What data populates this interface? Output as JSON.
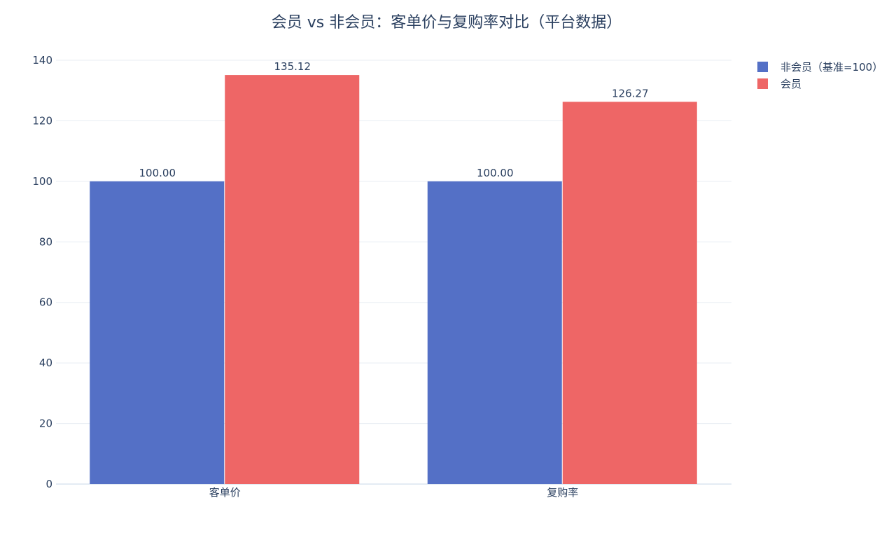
{
  "chart_data": {
    "type": "bar",
    "title": "会员 vs 非会员：客单价与复购率对比（平台数据）",
    "xlabel": "",
    "ylabel": "",
    "categories": [
      "客单价",
      "复购率"
    ],
    "series": [
      {
        "name": "非会员（基准=100）",
        "values": [
          100.0,
          100.0
        ],
        "labels": [
          "100.00",
          "100.00"
        ],
        "color": "#5470c6"
      },
      {
        "name": "会员",
        "values": [
          135.12,
          126.27
        ],
        "labels": [
          "135.12",
          "126.27"
        ],
        "color": "#ee6666"
      }
    ],
    "ylim": [
      0,
      140
    ],
    "yticks": [
      0,
      20,
      40,
      60,
      80,
      100,
      120,
      140
    ],
    "grid": true,
    "legend_position": "top-right"
  }
}
